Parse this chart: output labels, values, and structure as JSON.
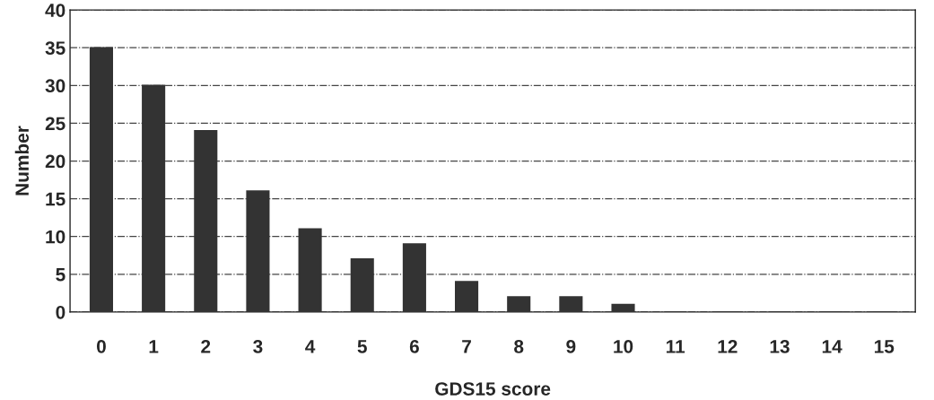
{
  "chart_data": {
    "type": "bar",
    "xlabel": "GDS15 score",
    "ylabel": "Number",
    "categories": [
      "0",
      "1",
      "2",
      "3",
      "4",
      "5",
      "6",
      "7",
      "8",
      "9",
      "10",
      "11",
      "12",
      "13",
      "14",
      "15"
    ],
    "values": [
      35,
      30,
      24,
      16,
      11,
      7,
      9,
      4,
      2,
      2,
      1,
      0,
      0,
      0,
      0,
      0
    ],
    "color": "#333333",
    "ylim": [
      0,
      40
    ],
    "yticks": [
      0,
      5,
      10,
      15,
      20,
      25,
      30,
      35,
      40
    ],
    "grid": "y"
  }
}
